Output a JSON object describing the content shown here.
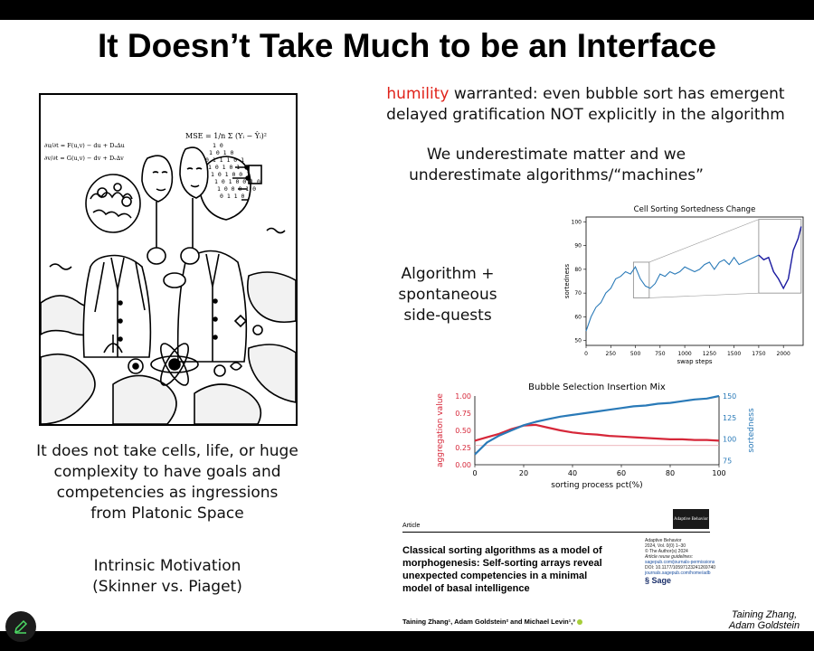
{
  "slide": {
    "title": "It Doesn’t Take Much to be an Interface",
    "humility_word": "humility",
    "humility_rest": " warranted: even bubble sort has emergent",
    "humility_line2": "delayed gratification NOT explicitly in the algorithm",
    "underestimate_line1": "We underestimate matter and we",
    "underestimate_line2": "underestimate algorithms/“machines”",
    "algorithm_line1": "Algorithm +",
    "algorithm_line2": "spontaneous",
    "algorithm_line3": "side-quests",
    "left_text_line1": "It does not take cells, life, or huge",
    "left_text_line2": "complexity to have goals and",
    "left_text_line3": "competencies as ingressions",
    "left_text_line4": "from Platonic Space",
    "intrinsic_line1": "Intrinsic Motivation",
    "intrinsic_line2": "(Skinner vs. Piaget)",
    "credit_line1": "Taining Zhang,",
    "credit_line2": "Adam Goldstein",
    "accent_red": "#e0221a"
  },
  "cartoon": {
    "equation_top": "MSE = 1/n Σ (Yᵢ − Ŷᵢ)²",
    "equation_left1": "∂u/∂t = F(u,v) − du + Dᵤ∆u",
    "equation_left2": "∂v/∂t = G(u,v) − dv + Dᵥ∆v",
    "binary": [
      "1 0",
      "1 0 1 0",
      "0 1 1 1 0 1",
      "1 0 1 0 1",
      "1 0 1 0 0 1",
      "1 0 1 0 0 1 0",
      "1 0 0 0 1 0",
      "0 1 1 0"
    ]
  },
  "paper": {
    "label": "Article",
    "journal": "Adaptive Behavior",
    "meta": [
      "Adaptive Behavior",
      "2024, Vol. 0(0) 1–30",
      "© The Author(s) 2024",
      "Article reuse guidelines:",
      "sagepub.com/journals-permissions",
      "DOI: 10.1177/10597123241269740",
      "journals.sagepub.com/home/adb"
    ],
    "publisher": "Sage",
    "title_line1": "Classical sorting algorithms as a model of",
    "title_line2": "morphogenesis: Self-sorting arrays reveal",
    "title_line3": "unexpected competencies in a minimal",
    "title_line4": "model of basal intelligence",
    "authors": "Taining Zhang¹, Adam Goldstein² and Michael Levin¹,³"
  },
  "chart_data": [
    {
      "type": "line",
      "title": "Cell Sorting Sortedness Change",
      "xlabel": "swap steps",
      "ylabel": "sortedness",
      "xlim": [
        0,
        2200
      ],
      "ylim": [
        48,
        102
      ],
      "xticks": [
        0,
        250,
        500,
        750,
        1000,
        1250,
        1500,
        1750,
        2000
      ],
      "yticks": [
        50,
        60,
        70,
        80,
        90,
        100
      ],
      "color": "#2a7ab8",
      "highlight_color": "#1a1aa0",
      "x": [
        0,
        50,
        100,
        150,
        200,
        250,
        300,
        350,
        400,
        450,
        500,
        550,
        600,
        650,
        700,
        750,
        800,
        850,
        900,
        950,
        1000,
        1050,
        1100,
        1150,
        1200,
        1250,
        1300,
        1350,
        1400,
        1450,
        1500,
        1550,
        1600,
        1650,
        1700,
        1750,
        1800,
        1850,
        1900,
        1950,
        2000,
        2050,
        2100,
        2150,
        2180
      ],
      "y": [
        54,
        60,
        64,
        66,
        70,
        72,
        76,
        77,
        79,
        78,
        81,
        76,
        73,
        72,
        74,
        78,
        77,
        79,
        78,
        79,
        81,
        80,
        79,
        80,
        82,
        83,
        80,
        83,
        84,
        82,
        85,
        82,
        83,
        84,
        85,
        86,
        84,
        85,
        79,
        76,
        72,
        76,
        88,
        93,
        98
      ],
      "highlight_from_x": 1750,
      "inset_box": {
        "x": [
          480,
          640
        ],
        "y": [
          68,
          83
        ]
      },
      "zoom_box": {
        "x": [
          1750,
          2180
        ],
        "y": [
          70,
          101
        ]
      }
    },
    {
      "type": "line",
      "title": "Bubble Selection Insertion Mix",
      "xlabel": "sorting process pct(%)",
      "ylabel": "aggregation value",
      "ylabel_right": "sortedness",
      "xlim": [
        0,
        100
      ],
      "ylim": [
        0,
        1.0
      ],
      "ylim_right": [
        70,
        150
      ],
      "xticks": [
        0,
        20,
        40,
        60,
        80,
        100
      ],
      "yticks": [
        0.0,
        0.25,
        0.5,
        0.75,
        1.0
      ],
      "yticks_labels": [
        "0.00",
        "0.25",
        "0.50",
        "0.75",
        "1.00"
      ],
      "yticks_right": [
        75,
        100,
        125,
        150
      ],
      "series": [
        {
          "name": "aggregation value",
          "axis": "left",
          "color": "#d62739",
          "x": [
            0,
            5,
            10,
            15,
            20,
            25,
            30,
            35,
            40,
            45,
            50,
            55,
            60,
            65,
            70,
            75,
            80,
            85,
            90,
            95,
            100
          ],
          "values": [
            0.35,
            0.4,
            0.45,
            0.52,
            0.57,
            0.58,
            0.54,
            0.5,
            0.47,
            0.45,
            0.44,
            0.42,
            0.41,
            0.4,
            0.39,
            0.38,
            0.37,
            0.37,
            0.36,
            0.36,
            0.35
          ]
        },
        {
          "name": "sortedness",
          "axis": "right",
          "color": "#2a7ab8",
          "x": [
            0,
            5,
            10,
            15,
            20,
            25,
            30,
            35,
            40,
            45,
            50,
            55,
            60,
            65,
            70,
            75,
            80,
            85,
            90,
            95,
            100
          ],
          "values": [
            82,
            96,
            104,
            110,
            116,
            120,
            123,
            126,
            128,
            130,
            132,
            134,
            136,
            138,
            139,
            141,
            142,
            144,
            146,
            147,
            150
          ]
        }
      ],
      "reference_line": {
        "axis": "left",
        "value": 0.28,
        "color": "#e8a0a8"
      }
    }
  ]
}
